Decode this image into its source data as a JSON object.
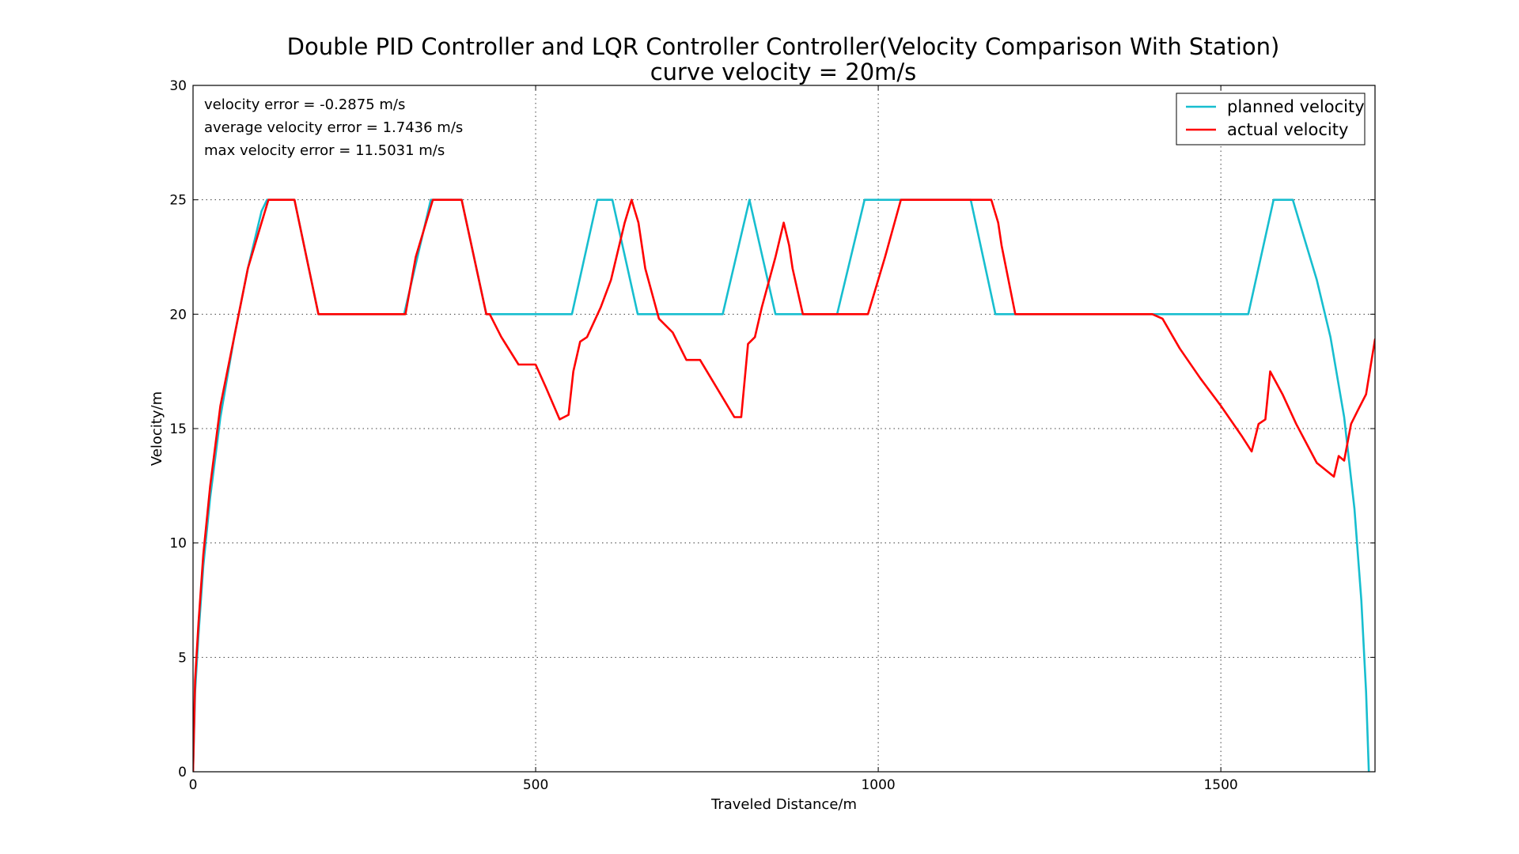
{
  "chart_data": {
    "type": "line",
    "title": "Double PID Controller and LQR Controller Controller(Velocity Comparison With Station)",
    "subtitle": "curve velocity = 20m/s",
    "xlabel": "Traveled Distance/m",
    "ylabel": "Velocity/m",
    "xlim": [
      0,
      1725
    ],
    "ylim": [
      0,
      30
    ],
    "xticks": [
      0,
      500,
      1000,
      1500
    ],
    "xtick_labels": [
      "0",
      "500",
      "1000",
      "1500"
    ],
    "yticks": [
      0,
      5,
      10,
      15,
      20,
      25,
      30
    ],
    "ytick_labels": [
      "0",
      "5",
      "10",
      "15",
      "20",
      "25",
      "30"
    ],
    "grid": true,
    "legend_position": "top-right",
    "annotations": [
      "velocity error = -0.2875 m/s",
      "average velocity error = 1.7436 m/s",
      "max velocity error = 11.5031 m/s"
    ],
    "series": [
      {
        "name": "planned velocity",
        "color": "#17becf",
        "x": [
          0,
          3,
          8,
          15,
          25,
          40,
          60,
          80,
          100,
          108,
          148,
          183,
          308,
          347,
          392,
          428,
          553,
          590,
          612,
          649,
          773,
          812,
          850,
          940,
          980,
          1033,
          1135,
          1171,
          1540,
          1577,
          1605,
          1615,
          1640,
          1660,
          1680,
          1695,
          1705,
          1712,
          1716
        ],
        "y": [
          0,
          3.5,
          6.0,
          9.0,
          12.0,
          15.5,
          19.0,
          22.0,
          24.5,
          25,
          25,
          20,
          20,
          25,
          25,
          20,
          20,
          25,
          25,
          20,
          20,
          25,
          20,
          20,
          25,
          25,
          25,
          20,
          20,
          25,
          25,
          24.0,
          21.5,
          19.0,
          15.5,
          11.5,
          7.5,
          3.5,
          0
        ]
      },
      {
        "name": "actual velocity",
        "color": "#ff0000",
        "x": [
          0,
          3,
          8,
          15,
          25,
          40,
          60,
          80,
          100,
          110,
          148,
          183,
          310,
          325,
          350,
          392,
          428,
          433,
          450,
          475,
          490,
          500,
          515,
          535,
          548,
          555,
          565,
          575,
          595,
          610,
          630,
          640,
          650,
          660,
          680,
          700,
          720,
          740,
          760,
          790,
          800,
          810,
          820,
          830,
          850,
          862,
          870,
          875,
          890,
          902,
          925,
          960,
          985,
          1010,
          1033,
          1050,
          1120,
          1165,
          1175,
          1180,
          1200,
          1215,
          1280,
          1340,
          1400,
          1415,
          1440,
          1470,
          1500,
          1530,
          1545,
          1555,
          1565,
          1572,
          1590,
          1610,
          1640,
          1665,
          1672,
          1680,
          1690,
          1700,
          1712,
          1720,
          1725
        ],
        "y": [
          0,
          4.0,
          6.5,
          9.5,
          12.5,
          16.0,
          19.0,
          22.0,
          24.0,
          25,
          25,
          20,
          20,
          22.5,
          25,
          25,
          20,
          20,
          19.0,
          17.8,
          17.8,
          17.8,
          16.8,
          15.4,
          15.6,
          17.5,
          18.8,
          19.0,
          20.3,
          21.5,
          24.0,
          25,
          24.0,
          22.0,
          19.8,
          19.2,
          18.0,
          18.0,
          17.0,
          15.5,
          15.5,
          18.7,
          19.0,
          20.3,
          22.5,
          24.0,
          23.0,
          22.0,
          20.0,
          20.0,
          20.0,
          20.0,
          20.0,
          22.5,
          25,
          25,
          25,
          25,
          24.0,
          23.0,
          20.0,
          20.0,
          20.0,
          20.0,
          20.0,
          19.8,
          18.5,
          17.2,
          16.0,
          14.7,
          14.0,
          15.2,
          15.4,
          17.5,
          16.5,
          15.2,
          13.5,
          12.9,
          13.8,
          13.6,
          15.2,
          15.8,
          16.5,
          18.0,
          18.9
        ]
      }
    ]
  }
}
